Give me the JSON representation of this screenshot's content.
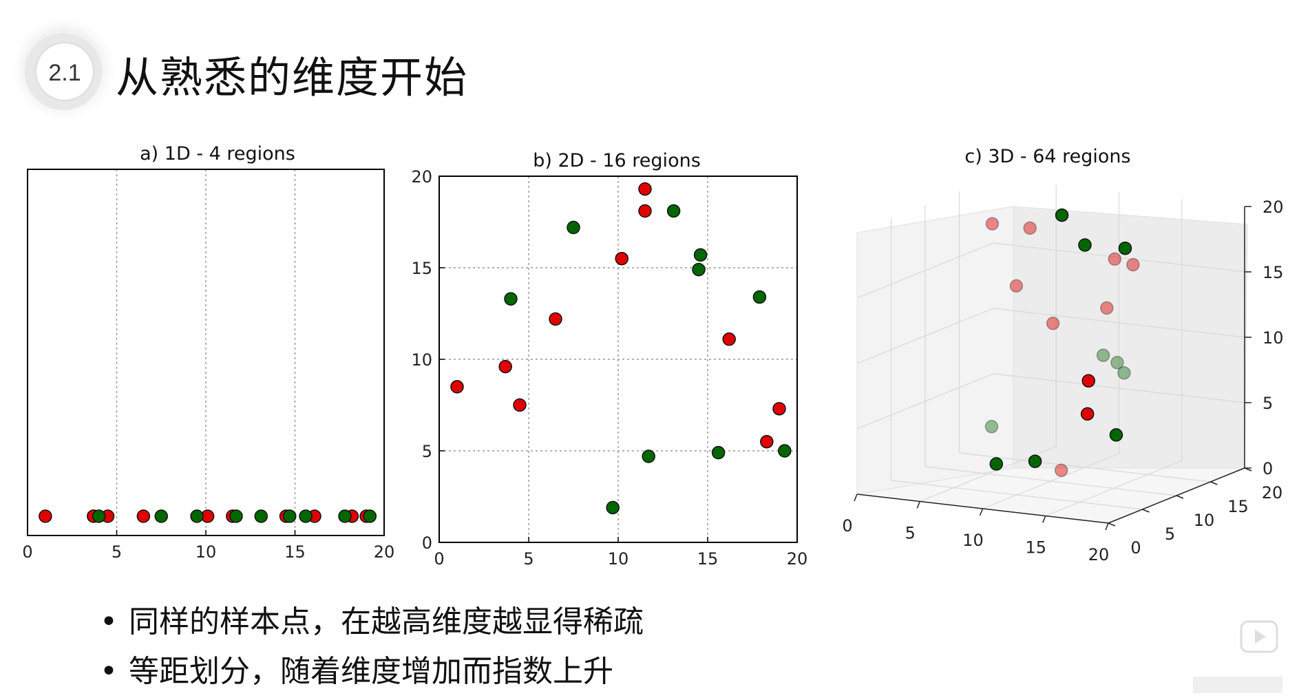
{
  "header": {
    "section_number": "2.1",
    "title": "从熟悉的维度开始"
  },
  "colors": {
    "red": "#e00000",
    "green": "#006600",
    "grid": "#999999"
  },
  "chart_data": [
    {
      "type": "scatter",
      "title": "a) 1D - 4 regions",
      "xlim": [
        0,
        20
      ],
      "xticks": [
        "0",
        "5",
        "10",
        "15",
        "20"
      ],
      "grid_x": [
        5,
        10,
        15
      ],
      "red": [
        1,
        3.7,
        4.5,
        6.5,
        10.1,
        11.5,
        14.5,
        16.1,
        18.2,
        19.0
      ],
      "green": [
        4,
        7.5,
        9.5,
        11.7,
        13.1,
        14.7,
        15.6,
        17.8,
        19.2
      ]
    },
    {
      "type": "scatter",
      "title": "b) 2D - 16 regions",
      "xlim": [
        0,
        20
      ],
      "ylim": [
        0,
        20
      ],
      "xticks": [
        "0",
        "5",
        "10",
        "15",
        "20"
      ],
      "yticks": [
        "0",
        "5",
        "10",
        "15",
        "20"
      ],
      "red": [
        [
          1.0,
          8.5
        ],
        [
          3.7,
          9.6
        ],
        [
          4.5,
          7.5
        ],
        [
          6.5,
          12.2
        ],
        [
          10.2,
          15.5
        ],
        [
          11.5,
          19.3
        ],
        [
          11.5,
          18.1
        ],
        [
          16.2,
          11.1
        ],
        [
          18.3,
          5.5
        ],
        [
          19.0,
          7.3
        ]
      ],
      "green": [
        [
          4.0,
          13.3
        ],
        [
          7.5,
          17.2
        ],
        [
          9.7,
          1.9
        ],
        [
          11.7,
          4.7
        ],
        [
          13.1,
          18.1
        ],
        [
          14.5,
          14.9
        ],
        [
          14.6,
          15.7
        ],
        [
          15.6,
          4.9
        ],
        [
          17.9,
          13.4
        ],
        [
          19.3,
          5.0
        ]
      ]
    },
    {
      "type": "scatter",
      "title": "c) 3D - 64 regions",
      "zticks": [
        "0",
        "5",
        "10",
        "15",
        "20"
      ],
      "xticks": [
        "0",
        "5",
        "10",
        "15",
        "20"
      ],
      "yticks": [
        "0",
        "5",
        "10",
        "15",
        "20"
      ],
      "red": [
        [
          1,
          18,
          17
        ],
        [
          4,
          18,
          17
        ],
        [
          4,
          16,
          13
        ],
        [
          8,
          14,
          11
        ],
        [
          14,
          12,
          17
        ],
        [
          16,
          11,
          17
        ],
        [
          15,
          9,
          14
        ],
        [
          13,
          10,
          8
        ],
        [
          14,
          8,
          6
        ],
        [
          13,
          6,
          2
        ]
      ],
      "green": [
        [
          6,
          19,
          18
        ],
        [
          10,
          15,
          17
        ],
        [
          17,
          8,
          19
        ],
        [
          12,
          14,
          9
        ],
        [
          18,
          5,
          11
        ],
        [
          18,
          6,
          10
        ],
        [
          19,
          3,
          6
        ],
        [
          8,
          5,
          5
        ],
        [
          12,
          4,
          3
        ],
        [
          10,
          2,
          3
        ]
      ],
      "faded_red": [
        0,
        1,
        2,
        3,
        4,
        5,
        6,
        9
      ],
      "faded_green": [
        3,
        4,
        5,
        7
      ]
    }
  ],
  "bullets": [
    "同样的样本点，在越高维度越显得稀疏",
    "等距划分，随着维度增加而指数上升"
  ]
}
